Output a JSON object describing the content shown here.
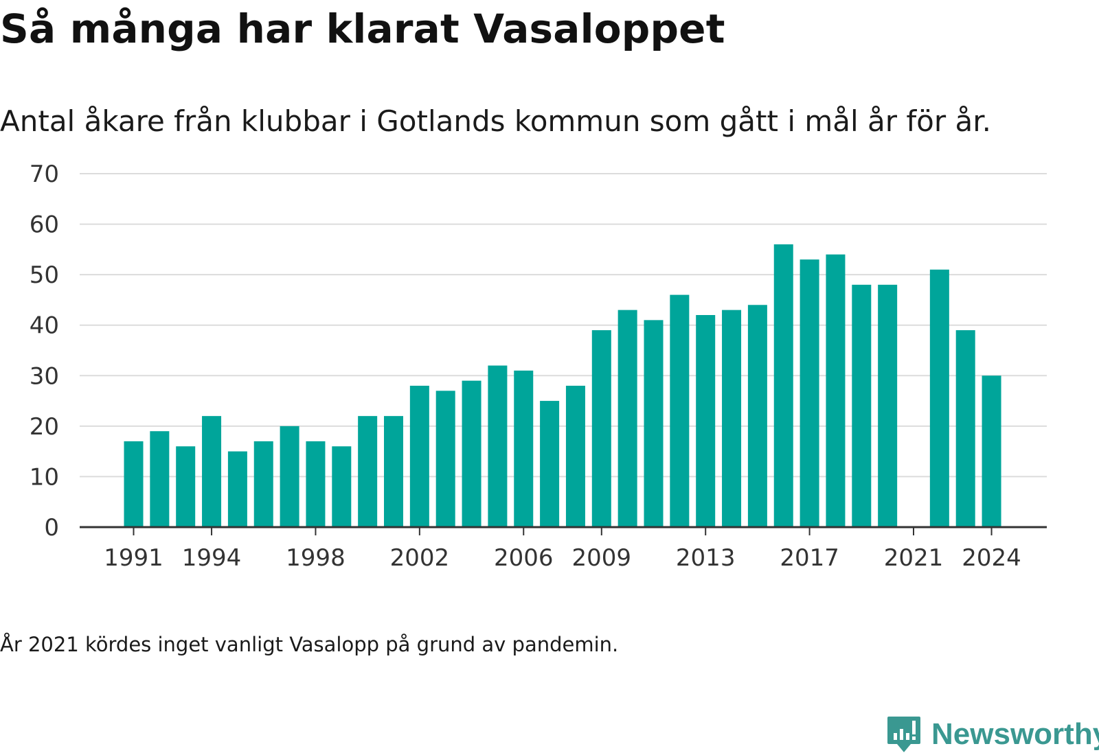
{
  "title": "Så många har klarat Vasaloppet",
  "subtitle": "Antal åkare från klubbar i Gotlands kommun som gått i mål år för år.",
  "footnote": "År 2021 kördes inget vanligt Vasalopp på grund av pandemin.",
  "brand": {
    "name": "Newsworthy",
    "icon": "newsworthy-logo-icon",
    "color": "#3a9891"
  },
  "colors": {
    "bar": "#00a59a",
    "grid": "#dcdcdc",
    "axis": "#333333"
  },
  "chart_data": {
    "type": "bar",
    "x": [
      1991,
      1992,
      1993,
      1994,
      1995,
      1996,
      1997,
      1998,
      1999,
      2000,
      2001,
      2002,
      2003,
      2004,
      2005,
      2006,
      2007,
      2008,
      2009,
      2010,
      2011,
      2012,
      2013,
      2014,
      2015,
      2016,
      2017,
      2018,
      2019,
      2020,
      2021,
      2022,
      2023,
      2024
    ],
    "values": [
      17,
      19,
      16,
      22,
      15,
      17,
      20,
      17,
      16,
      22,
      22,
      28,
      27,
      29,
      32,
      31,
      25,
      28,
      39,
      43,
      41,
      46,
      42,
      43,
      44,
      56,
      53,
      54,
      48,
      48,
      null,
      51,
      39,
      30
    ],
    "x_ticks": [
      "1991",
      "1994",
      "1998",
      "2002",
      "2006",
      "2009",
      "2013",
      "2017",
      "2021",
      "2024"
    ],
    "y_ticks": [
      "0",
      "10",
      "20",
      "30",
      "40",
      "50",
      "60",
      "70"
    ],
    "ylim": [
      0,
      70
    ],
    "grid": true,
    "xlabel": "",
    "ylabel": ""
  }
}
